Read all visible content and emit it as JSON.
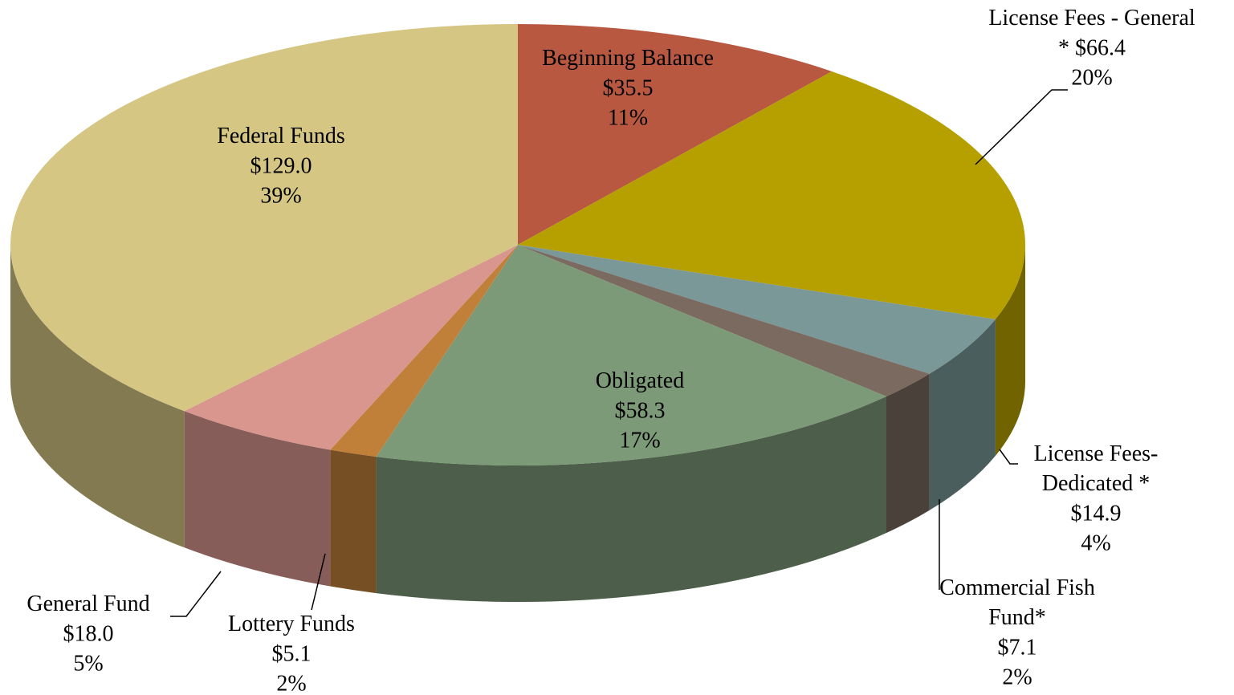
{
  "chart_data": {
    "type": "pie3d",
    "categories": [
      "Beginning Balance",
      "License Fees - General",
      "License Fees-\nDedicated *",
      "Commercial Fish\nFund*",
      "Obligated",
      "Lottery Funds",
      "General Fund",
      "Federal Funds"
    ],
    "values": [
      35.5,
      66.4,
      14.9,
      7.1,
      58.3,
      5.1,
      18.0,
      129.0
    ],
    "value_labels": [
      "$35.5",
      "* $66.4",
      "$14.9",
      "$7.1",
      "$58.3",
      "$5.1",
      "$18.0",
      "$129.0"
    ],
    "percent_labels": [
      "11%",
      "20%",
      "4%",
      "2%",
      "17%",
      "2%",
      "5%",
      "39%"
    ],
    "colors": [
      "#b85840",
      "#b5a000",
      "#7a9898",
      "#7a6a60",
      "#7d9a78",
      "#c0803a",
      "#d9968e",
      "#d6c683"
    ]
  }
}
